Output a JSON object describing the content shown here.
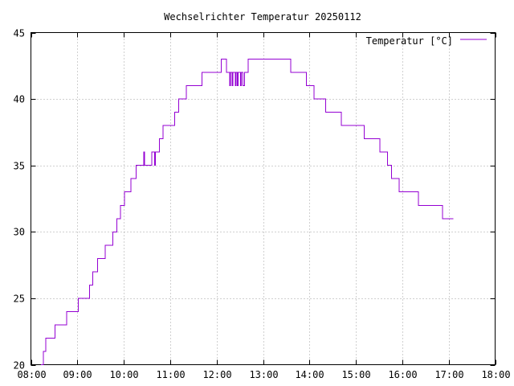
{
  "chart_data": {
    "type": "line",
    "title": "Wechselrichter Temperatur 20250112",
    "xlabel": "",
    "ylabel": "",
    "xlim": [
      "08:00",
      "18:00"
    ],
    "ylim": [
      20,
      45
    ],
    "x_ticks": [
      "08:00",
      "09:00",
      "10:00",
      "11:00",
      "12:00",
      "13:00",
      "14:00",
      "15:00",
      "16:00",
      "17:00",
      "18:00"
    ],
    "y_ticks": [
      20,
      25,
      30,
      35,
      40,
      45
    ],
    "grid": true,
    "legend_position": "top-right",
    "series": [
      {
        "name": "Temperatur [°C]",
        "color": "#9400d3",
        "step": true,
        "points": [
          [
            "08:13",
            20
          ],
          [
            "08:16",
            21
          ],
          [
            "08:19",
            22
          ],
          [
            "08:31",
            23
          ],
          [
            "08:46",
            24
          ],
          [
            "09:01",
            25
          ],
          [
            "09:16",
            26
          ],
          [
            "09:20",
            27
          ],
          [
            "09:26",
            28
          ],
          [
            "09:36",
            29
          ],
          [
            "09:46",
            30
          ],
          [
            "09:51",
            31
          ],
          [
            "09:56",
            32
          ],
          [
            "10:01",
            33
          ],
          [
            "10:09",
            34
          ],
          [
            "10:16",
            35
          ],
          [
            "10:26",
            36
          ],
          [
            "10:27",
            35
          ],
          [
            "10:36",
            36
          ],
          [
            "10:40",
            35
          ],
          [
            "10:41",
            36
          ],
          [
            "10:46",
            37
          ],
          [
            "10:51",
            38
          ],
          [
            "11:06",
            39
          ],
          [
            "11:11",
            40
          ],
          [
            "11:21",
            41
          ],
          [
            "11:41",
            42
          ],
          [
            "12:06",
            43
          ],
          [
            "12:13",
            42
          ],
          [
            "12:17",
            41
          ],
          [
            "12:18",
            42
          ],
          [
            "12:20",
            41
          ],
          [
            "12:21",
            42
          ],
          [
            "12:24",
            41
          ],
          [
            "12:25",
            42
          ],
          [
            "12:27",
            41
          ],
          [
            "12:28",
            42
          ],
          [
            "12:31",
            41
          ],
          [
            "12:32",
            42
          ],
          [
            "12:34",
            41
          ],
          [
            "12:36",
            42
          ],
          [
            "12:41",
            43
          ],
          [
            "13:36",
            42
          ],
          [
            "13:56",
            41
          ],
          [
            "14:06",
            40
          ],
          [
            "14:21",
            39
          ],
          [
            "14:41",
            38
          ],
          [
            "15:11",
            37
          ],
          [
            "15:31",
            36
          ],
          [
            "15:41",
            35
          ],
          [
            "15:46",
            34
          ],
          [
            "15:56",
            33
          ],
          [
            "16:21",
            32
          ],
          [
            "16:52",
            31
          ],
          [
            "17:06",
            31
          ]
        ]
      }
    ]
  }
}
